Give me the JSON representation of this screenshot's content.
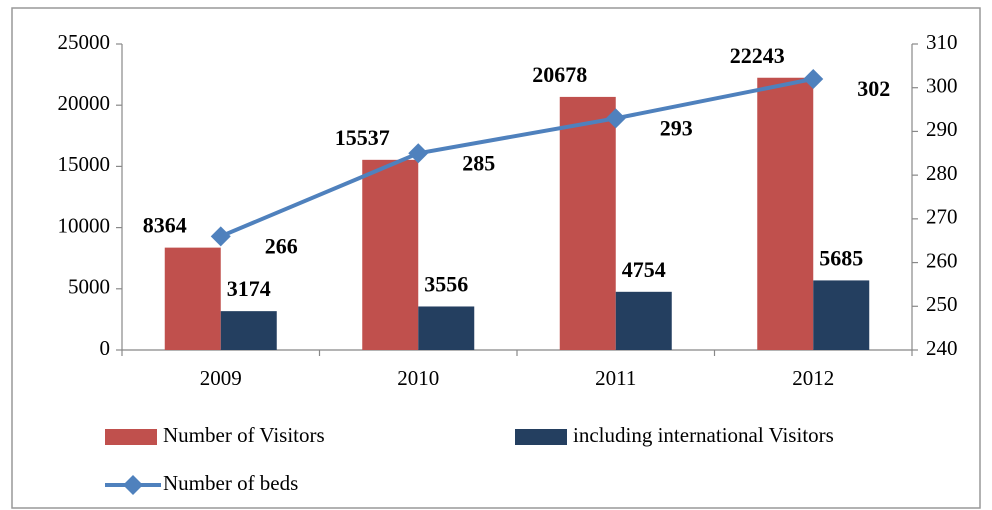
{
  "chart_data": {
    "type": "bar",
    "categories": [
      "2009",
      "2010",
      "2011",
      "2012"
    ],
    "series": [
      {
        "name": "Number of Visitors",
        "color": "#c0504d",
        "values": [
          8364,
          15537,
          20678,
          22243
        ]
      },
      {
        "name": "including international Visitors",
        "color": "#243f60",
        "values": [
          3174,
          3556,
          4754,
          5685
        ]
      },
      {
        "name": "Number of beds",
        "color": "#4f81bd",
        "type": "line",
        "axis": "y2",
        "values": [
          266,
          285,
          293,
          302
        ]
      }
    ],
    "ylim": [
      0,
      25000
    ],
    "yticks": [
      0,
      5000,
      10000,
      15000,
      20000,
      25000
    ],
    "y2lim": [
      240,
      310
    ],
    "y2ticks": [
      240,
      250,
      260,
      270,
      280,
      290,
      300,
      310
    ],
    "grid": false,
    "legend": "bottom"
  }
}
